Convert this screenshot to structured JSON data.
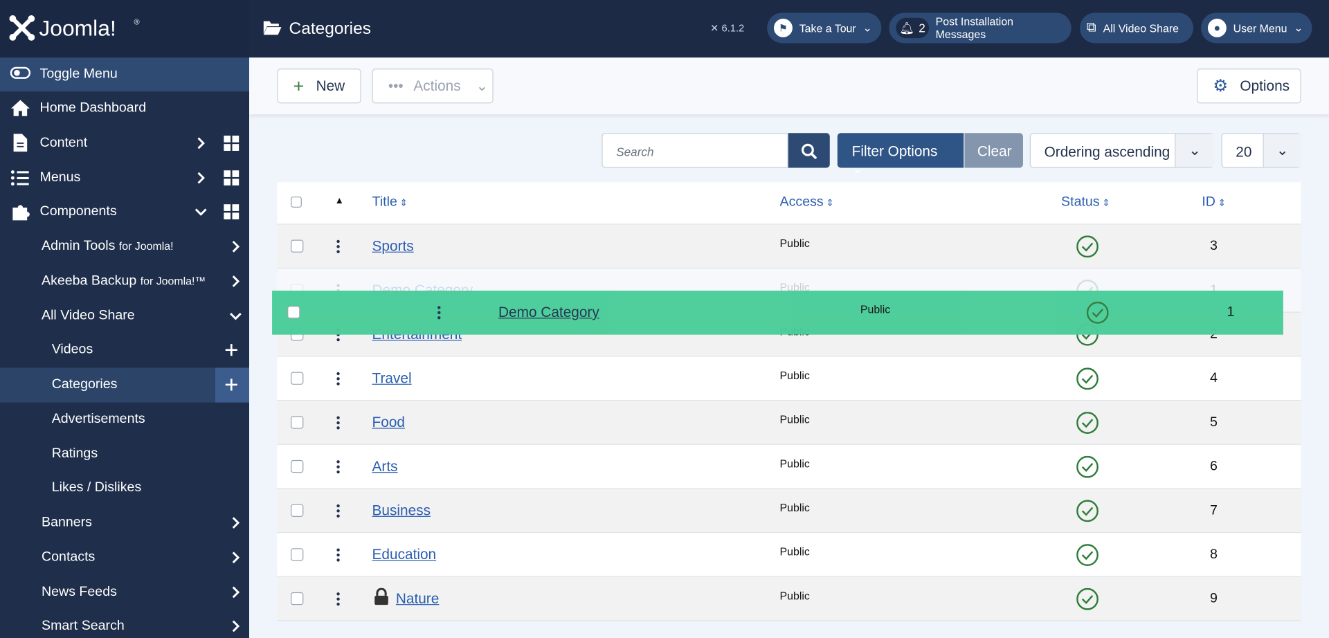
{
  "header": {
    "brand": "Joomla!",
    "brand_mark": "®",
    "title": "Categories",
    "version": "6.1.2",
    "tour": "Take a Tour",
    "notification_count": 2,
    "post_installation": "Post Installation Messages",
    "site_link": "All Video Share",
    "user_menu": "User Menu"
  },
  "sidebar": {
    "items": [
      {
        "label": "Toggle Menu"
      },
      {
        "label": "Home Dashboard"
      },
      {
        "label": "Content"
      },
      {
        "label": "Menus"
      },
      {
        "label": "Components"
      },
      {
        "label": "Admin Tools",
        "note": "for Joomla!"
      },
      {
        "label": "Akeeba Backup",
        "note": "for Joomla!™"
      },
      {
        "label": "All Video Share"
      },
      {
        "label": "Videos"
      },
      {
        "label": "Categories"
      },
      {
        "label": "Advertisements"
      },
      {
        "label": "Ratings"
      },
      {
        "label": "Likes / Dislikes"
      },
      {
        "label": "Banners"
      },
      {
        "label": "Contacts"
      },
      {
        "label": "News Feeds"
      },
      {
        "label": "Smart Search"
      }
    ]
  },
  "toolbar": {
    "new": "New",
    "actions": "Actions",
    "options": "Options"
  },
  "filters": {
    "search_placeholder": "Search",
    "filter_options": "Filter Options",
    "clear": "Clear",
    "ordering": "Ordering ascending",
    "limit": 20
  },
  "table": {
    "headers": [
      "Title",
      "Access",
      "Status",
      "ID"
    ],
    "rows": [
      {
        "title": "Sports",
        "access": "Public",
        "id": 3
      },
      {
        "title": "Demo Category",
        "access": "Public",
        "id": 1
      },
      {
        "title": "Entertainment",
        "access": "Public",
        "id": 2
      },
      {
        "title": "Travel",
        "access": "Public",
        "id": 4
      },
      {
        "title": "Food",
        "access": "Public",
        "id": 5
      },
      {
        "title": "Arts",
        "access": "Public",
        "id": 6
      },
      {
        "title": "Business",
        "access": "Public",
        "id": 7
      },
      {
        "title": "Education",
        "access": "Public",
        "id": 8
      },
      {
        "title": "Nature",
        "access": "Public",
        "id": 9,
        "checked_out": true
      }
    ]
  }
}
